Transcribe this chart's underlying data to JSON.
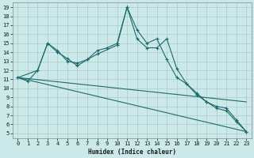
{
  "xlabel": "Humidex (Indice chaleur)",
  "xlim": [
    -0.5,
    23.5
  ],
  "ylim": [
    4.5,
    19.5
  ],
  "yticks": [
    5,
    6,
    7,
    8,
    9,
    10,
    11,
    12,
    13,
    14,
    15,
    16,
    17,
    18,
    19
  ],
  "xticks": [
    0,
    1,
    2,
    3,
    4,
    5,
    6,
    7,
    8,
    9,
    10,
    11,
    12,
    13,
    14,
    15,
    16,
    17,
    18,
    19,
    20,
    21,
    22,
    23
  ],
  "bg_color": "#cce9e9",
  "grid_color": "#aacccc",
  "line_color": "#1a6b6b",
  "line1_x": [
    0,
    1,
    2,
    3,
    4,
    5,
    6,
    7,
    8,
    9,
    10,
    11,
    12,
    13,
    14,
    15,
    16,
    17,
    18,
    19,
    20,
    21,
    22,
    23
  ],
  "line1_y": [
    11.2,
    10.8,
    12.0,
    15.0,
    14.2,
    13.0,
    12.8,
    13.2,
    14.2,
    14.5,
    15.0,
    19.0,
    16.5,
    15.0,
    15.5,
    13.2,
    11.2,
    10.5,
    9.3,
    8.5,
    7.8,
    7.5,
    6.3,
    5.2
  ],
  "line2_x": [
    0,
    2,
    3,
    4,
    5,
    6,
    7,
    8,
    10,
    11,
    12,
    13,
    14,
    15,
    16,
    17,
    18,
    19,
    20,
    21,
    22,
    23
  ],
  "line2_y": [
    11.2,
    12.0,
    15.0,
    14.0,
    13.3,
    12.5,
    13.2,
    13.8,
    14.8,
    19.0,
    15.5,
    14.5,
    14.5,
    15.5,
    12.2,
    10.5,
    9.5,
    8.5,
    8.0,
    7.8,
    6.5,
    5.2
  ],
  "line3_x": [
    0,
    23
  ],
  "line3_y": [
    11.2,
    5.2
  ],
  "line4_x": [
    0,
    23
  ],
  "line4_y": [
    11.2,
    8.5
  ]
}
